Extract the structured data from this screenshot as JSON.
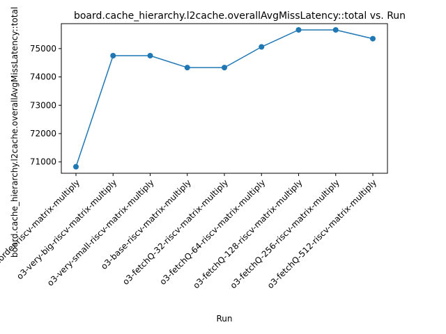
{
  "chart_data": {
    "type": "line",
    "title": "board.cache_hierarchy.l2cache.overallAvgMissLatency::total vs. Run",
    "xlabel": "Run",
    "ylabel": "board.cache_hierarchy.l2cache.overallAvgMissLatency::total",
    "categories": [
      "inorder-riscv-matrix-multiply",
      "o3-very-big-riscv-matrix-multiply",
      "o3-very-small-riscv-matrix-multiply",
      "o3-base-riscv-matrix-multiply",
      "o3-fetchQ-32-riscv-matrix-multiply",
      "o3-fetchQ-64-riscv-matrix-multiply",
      "o3-fetchQ-128-riscv-matrix-multiply",
      "o3-fetchQ-256-riscv-matrix-multiply",
      "o3-fetchQ-512-riscv-matrix-multiply"
    ],
    "series": [
      {
        "values": [
          70830,
          74750,
          74750,
          74330,
          74330,
          75060,
          75660,
          75660,
          75350
        ],
        "color": "#1f77b4",
        "marker": "circle"
      }
    ],
    "yticks": [
      71000,
      72000,
      73000,
      74000,
      75000
    ],
    "ylim": [
      70600,
      75880
    ],
    "grid": false,
    "legend": "none"
  }
}
